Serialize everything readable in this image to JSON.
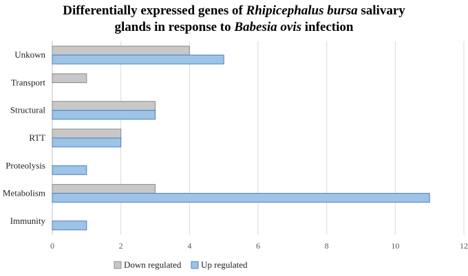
{
  "chart_data": {
    "type": "bar",
    "orientation": "horizontal",
    "title_parts": [
      {
        "text": "Differentially expressed genes of ",
        "italic": false
      },
      {
        "text": "Rhipicephalus bursa",
        "italic": true
      },
      {
        "text": " salivary",
        "italic": false
      },
      {
        "text": "glands in response to ",
        "italic": false,
        "newline": true
      },
      {
        "text": "Babesia ovis",
        "italic": true
      },
      {
        "text": " infection",
        "italic": false
      }
    ],
    "categories": [
      "Unkown",
      "Transport",
      "Structural",
      "RTT",
      "Proteolysis",
      "Metabolism",
      "Immunity"
    ],
    "series": [
      {
        "name": "Down regulated",
        "color": "#c8c8c8",
        "stroke": "#8a8a8a",
        "values": [
          4,
          1,
          3,
          2,
          0,
          3,
          0
        ]
      },
      {
        "name": "Up regulated",
        "color": "#9dc3e6",
        "stroke": "#4a7fc0",
        "values": [
          5,
          0,
          3,
          2,
          1,
          11,
          1
        ]
      }
    ],
    "xlim": [
      0,
      12
    ],
    "xticks": [
      0,
      2,
      4,
      6,
      8,
      10,
      12
    ],
    "xlabel": "",
    "ylabel": "",
    "grid": "vertical",
    "legend": "bottom-center"
  }
}
